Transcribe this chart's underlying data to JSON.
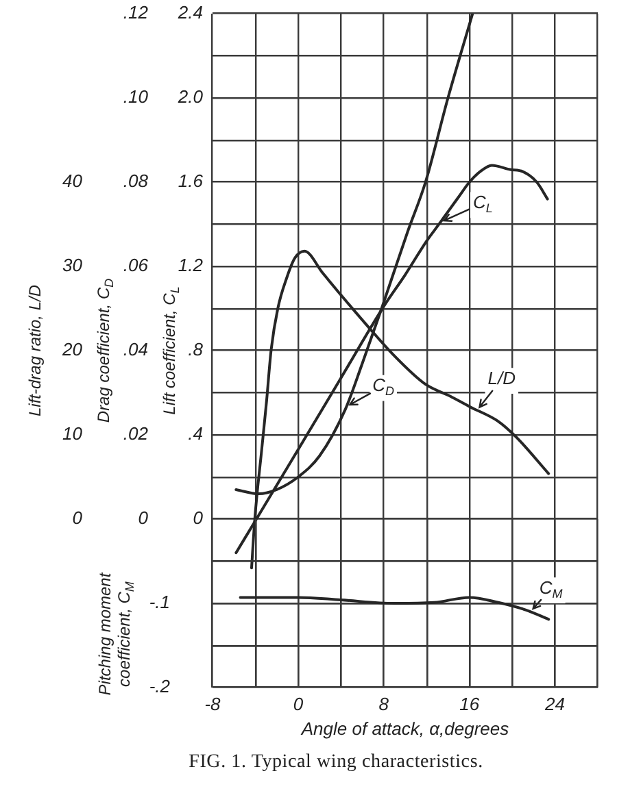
{
  "chart_data": [
    {
      "type": "line",
      "xlabel": "Angle of attack, α,degrees",
      "ylabel": "Lift coefficient, C$_{L}$",
      "y2label": "Drag coefficient, C$_{D}$",
      "y3label": "Lift-drag ratio, L/D",
      "annotations": [
        "FIG. 1. Typical wing characteristics."
      ],
      "xlim": [
        -8,
        28
      ],
      "xticks": [
        -8,
        {
          "value": -4,
          "label": null
        },
        0,
        {
          "value": 4,
          "label": null
        },
        8,
        {
          "value": 12,
          "label": null
        },
        16,
        {
          "value": 20,
          "label": null
        },
        24,
        {
          "value": 28,
          "label": null
        }
      ],
      "ylim": [
        -0.8,
        2.4
      ],
      "yticks": [
        {
          "value": -0.8,
          "label": null
        },
        {
          "value": -0.6,
          "label": null
        },
        {
          "value": -0.4,
          "label": null
        },
        {
          "value": -0.2,
          "label": null
        },
        0,
        {
          "value": 0.2,
          "label": null
        },
        {
          "value": 0.4,
          "label": ".4"
        },
        {
          "value": 0.6,
          "label": null
        },
        {
          "value": 0.8,
          "label": ".8"
        },
        {
          "value": 1,
          "label": null
        },
        1.2,
        {
          "value": 1.4,
          "label": null
        },
        1.6,
        {
          "value": 1.8,
          "label": null
        },
        {
          "value": 2,
          "label": "2.0"
        },
        {
          "value": 2.2,
          "label": null
        },
        2.4
      ],
      "y2lim": [
        -0.04,
        0.12
      ],
      "y2ticks": [
        0,
        {
          "value": 0.02,
          "label": ".02"
        },
        {
          "value": 0.04,
          "label": ".04"
        },
        {
          "value": 0.06,
          "label": ".06"
        },
        {
          "value": 0.08,
          "label": ".08"
        },
        {
          "value": 0.1,
          "label": ".10"
        },
        {
          "value": 0.12,
          "label": ".12"
        }
      ],
      "y3lim": [
        -20,
        60
      ],
      "y3ticks": [
        0,
        10,
        20,
        30,
        40
      ],
      "grid": true,
      "marker": "none",
      "line_style": "solid",
      "series": [
        {
          "name": "C$_{L}$",
          "color": "#262626",
          "axis": "y",
          "x": [
            -5.8,
            -3.9,
            0,
            4,
            8,
            10,
            12,
            13.3,
            14,
            15,
            16,
            17,
            18.1,
            19.8,
            21,
            22.3,
            23.3
          ],
          "values": [
            -0.16,
            0,
            0.33,
            0.67,
            1.01,
            1.16,
            1.32,
            1.41,
            1.46,
            1.53,
            1.6,
            1.65,
            1.68,
            1.66,
            1.65,
            1.6,
            1.52
          ]
        },
        {
          "name": "C$_{D}$",
          "color": "#262626",
          "axis": "y2",
          "x": [
            -5.8,
            -3.7,
            -2,
            0,
            2,
            4.4,
            6,
            7.8,
            10.2,
            11.9,
            14,
            16.3
          ],
          "values": [
            0.007,
            0.006,
            0.007,
            0.01,
            0.015,
            0.026,
            0.037,
            0.05,
            0.068,
            0.08,
            0.1,
            0.12
          ]
        },
        {
          "name": "L/D",
          "color": "#262626",
          "axis": "y3",
          "x": [
            -4.35,
            -4.05,
            -3.4,
            -2.95,
            -2.53,
            -1.9,
            -1.05,
            -0.3,
            0.6,
            2.3,
            4,
            6.5,
            8.9,
            11.9,
            14.2,
            16.1,
            18.7,
            20.4,
            23.4
          ],
          "values": [
            -5.8,
            0,
            8.3,
            14,
            20,
            25,
            28.7,
            31,
            31.8,
            29.2,
            26.6,
            22.9,
            19.5,
            16,
            14.6,
            13.3,
            11.6,
            9.7,
            5.4
          ]
        }
      ]
    },
    {
      "type": "line",
      "ylabel": "Pitching moment coefficient, C$_{M}$",
      "tick_labels": "y",
      "xlim": [
        -8,
        28
      ],
      "xticks": [
        -8,
        {
          "value": -4,
          "label": null
        },
        0,
        {
          "value": 4,
          "label": null
        },
        8,
        {
          "value": 12,
          "label": null
        },
        16,
        {
          "value": 20,
          "label": null
        },
        24,
        {
          "value": 28,
          "label": null
        }
      ],
      "ylim": [
        -0.2,
        0
      ],
      "yticks": [
        {
          "value": -0.2,
          "label": "-.2"
        },
        {
          "value": -0.15,
          "label": null
        },
        {
          "value": -0.1,
          "label": "-.1"
        },
        {
          "value": -0.05,
          "label": null
        },
        {
          "value": 0,
          "label": null
        }
      ],
      "grid": true,
      "marker": "none",
      "line_style": "solid",
      "series": [
        {
          "name": "C$_{M}$",
          "color": "#262626",
          "x": [
            -5.4,
            0,
            4,
            9,
            12.7,
            16,
            18.7,
            21.3,
            23.4
          ],
          "values": [
            -0.093,
            -0.093,
            -0.096,
            -0.1,
            -0.099,
            -0.093,
            -0.099,
            -0.108,
            -0.119
          ]
        }
      ]
    }
  ]
}
